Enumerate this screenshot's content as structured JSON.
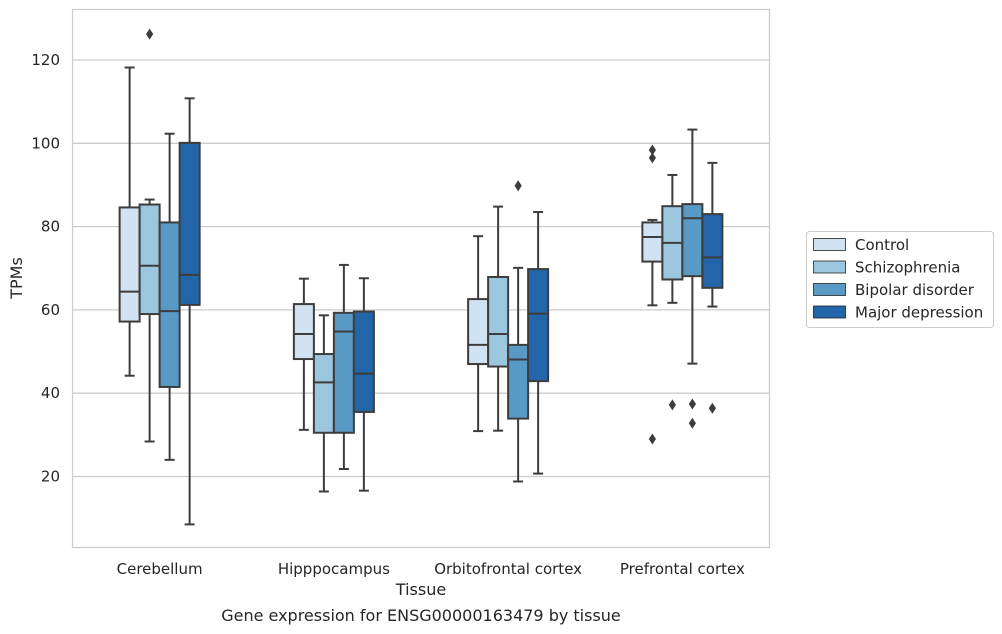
{
  "chart_data": {
    "type": "box",
    "title": "",
    "caption": "Gene expression for ENSG00000163479 by tissue",
    "xlabel": "Tissue",
    "ylabel": "TPMs",
    "categories": [
      "Cerebellum",
      "Hipppocampus",
      "Orbitofrontal cortex",
      "Prefrontal cortex"
    ],
    "yticks": [
      20,
      40,
      60,
      80,
      100,
      120
    ],
    "ylim": [
      3,
      133
    ],
    "grid": "horizontal",
    "legend_position": "right",
    "series": [
      {
        "name": "Control",
        "color": "#d1e2f2",
        "boxes": [
          {
            "whisker_low": 44.2,
            "q1": 57.2,
            "median": 64.4,
            "q3": 84.6,
            "whisker_high": 118.2,
            "outliers": []
          },
          {
            "whisker_low": 31.2,
            "q1": 48.2,
            "median": 54.2,
            "q3": 61.4,
            "whisker_high": 67.5,
            "outliers": []
          },
          {
            "whisker_low": 30.9,
            "q1": 47.0,
            "median": 51.6,
            "q3": 62.6,
            "whisker_high": 77.7,
            "outliers": []
          },
          {
            "whisker_low": 61.1,
            "q1": 71.6,
            "median": 77.5,
            "q3": 81.0,
            "whisker_high": 81.6,
            "outliers": [
              98.4,
              96.5,
              29.0
            ]
          }
        ]
      },
      {
        "name": "Schizophrenia",
        "color": "#9cc5de",
        "boxes": [
          {
            "whisker_low": 28.4,
            "q1": 59.0,
            "median": 70.6,
            "q3": 85.3,
            "whisker_high": 86.5,
            "outliers": [
              126.2
            ]
          },
          {
            "whisker_low": 16.4,
            "q1": 30.5,
            "median": 42.6,
            "q3": 49.4,
            "whisker_high": 58.7,
            "outliers": []
          },
          {
            "whisker_low": 31.0,
            "q1": 46.4,
            "median": 54.2,
            "q3": 67.9,
            "whisker_high": 84.8,
            "outliers": []
          },
          {
            "whisker_low": 61.7,
            "q1": 67.3,
            "median": 76.1,
            "q3": 84.9,
            "whisker_high": 92.4,
            "outliers": [
              37.2
            ]
          }
        ]
      },
      {
        "name": "Bipolar disorder",
        "color": "#5899c6",
        "boxes": [
          {
            "whisker_low": 24.0,
            "q1": 41.5,
            "median": 59.7,
            "q3": 81.0,
            "whisker_high": 102.3,
            "outliers": []
          },
          {
            "whisker_low": 21.8,
            "q1": 30.5,
            "median": 54.8,
            "q3": 59.3,
            "whisker_high": 70.8,
            "outliers": []
          },
          {
            "whisker_low": 18.8,
            "q1": 33.9,
            "median": 48.1,
            "q3": 51.6,
            "whisker_high": 70.1,
            "outliers": [
              89.8
            ]
          },
          {
            "whisker_low": 47.1,
            "q1": 68.1,
            "median": 82.0,
            "q3": 85.4,
            "whisker_high": 103.3,
            "outliers": [
              37.4,
              32.8
            ]
          }
        ]
      },
      {
        "name": "Major depression",
        "color": "#2265a8",
        "boxes": [
          {
            "whisker_low": 8.5,
            "q1": 61.2,
            "median": 68.4,
            "q3": 100.1,
            "whisker_high": 110.8,
            "outliers": []
          },
          {
            "whisker_low": 16.6,
            "q1": 35.5,
            "median": 44.7,
            "q3": 59.6,
            "whisker_high": 67.6,
            "outliers": []
          },
          {
            "whisker_low": 20.7,
            "q1": 42.9,
            "median": 59.1,
            "q3": 69.8,
            "whisker_high": 83.5,
            "outliers": []
          },
          {
            "whisker_low": 60.8,
            "q1": 65.3,
            "median": 72.6,
            "q3": 83.0,
            "whisker_high": 95.3,
            "outliers": [
              36.4
            ]
          }
        ]
      }
    ]
  }
}
